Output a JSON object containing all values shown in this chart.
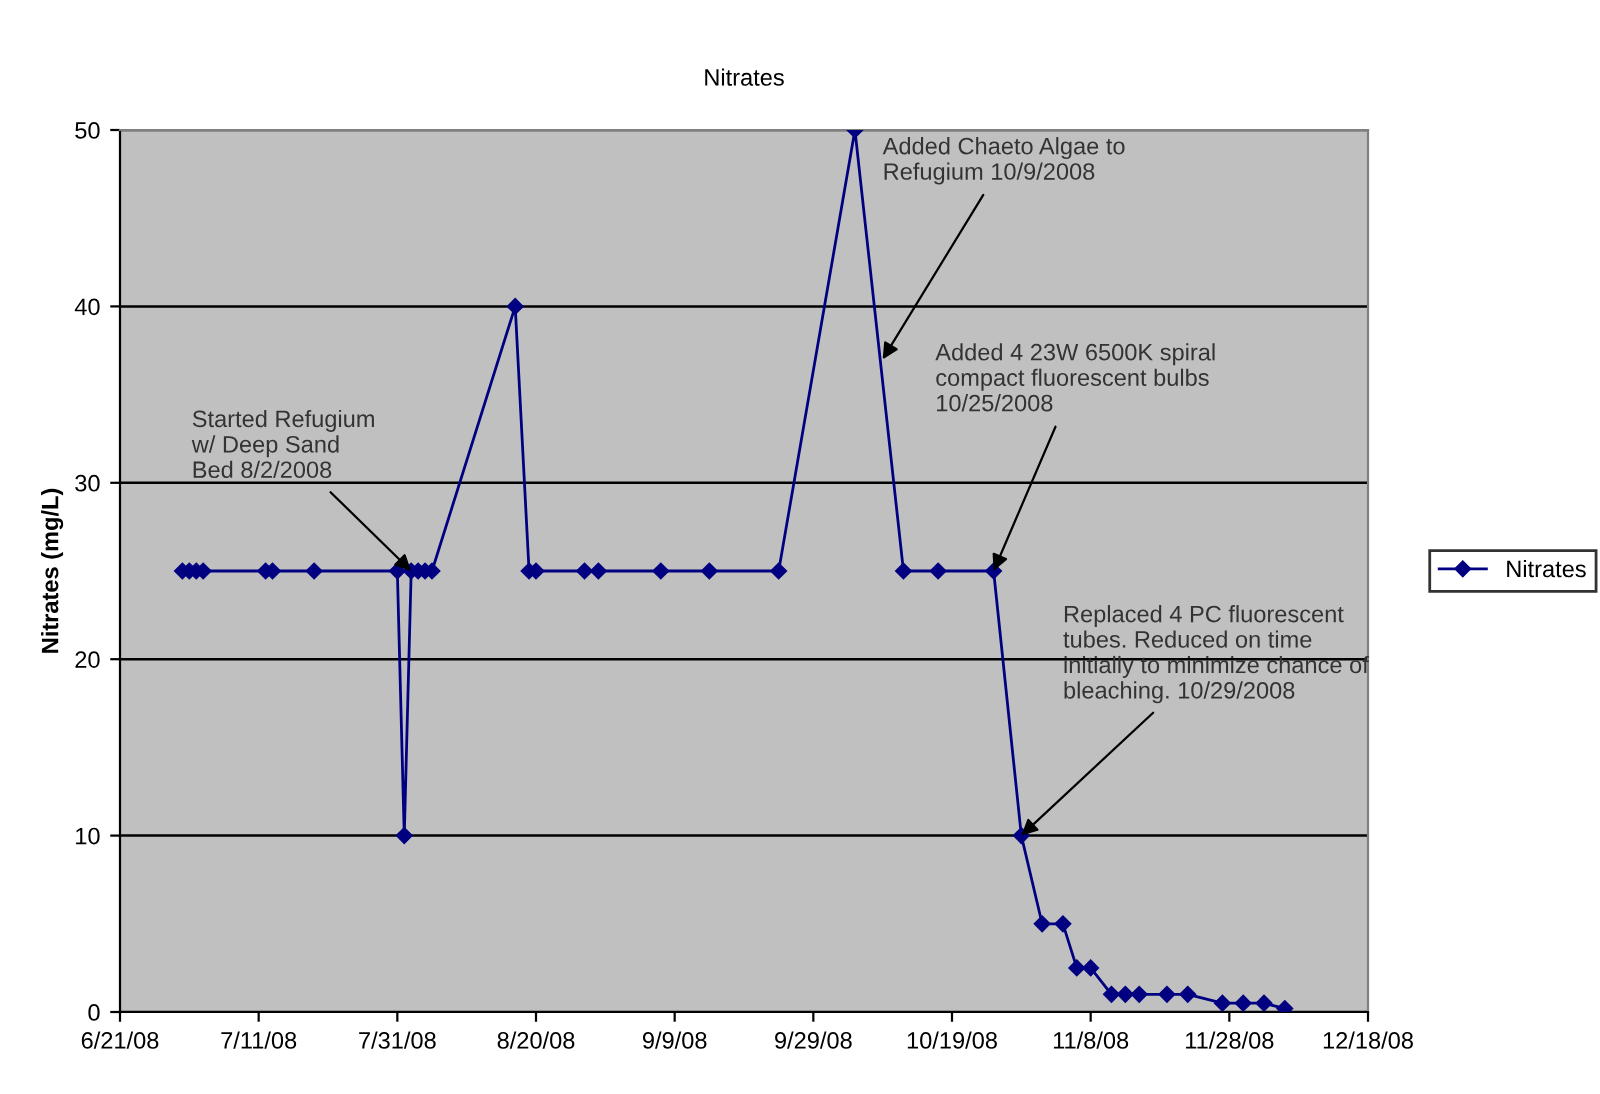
{
  "chart_data": {
    "type": "line",
    "title": "Nitrates",
    "ylabel": "Nitrates (mg/L)",
    "x": [
      "2008-06-30",
      "2008-07-01",
      "2008-07-02",
      "2008-07-03",
      "2008-07-12",
      "2008-07-13",
      "2008-07-19",
      "2008-07-31",
      "2008-08-01",
      "2008-08-02",
      "2008-08-03",
      "2008-08-04",
      "2008-08-05",
      "2008-08-17",
      "2008-08-19",
      "2008-08-20",
      "2008-08-27",
      "2008-08-29",
      "2008-09-07",
      "2008-09-14",
      "2008-09-24",
      "2008-10-05",
      "2008-10-12",
      "2008-10-17",
      "2008-10-25",
      "2008-10-29",
      "2008-11-01",
      "2008-11-04",
      "2008-11-06",
      "2008-11-08",
      "2008-11-11",
      "2008-11-13",
      "2008-11-15",
      "2008-11-19",
      "2008-11-22",
      "2008-11-27",
      "2008-11-30",
      "2008-12-03",
      "2008-12-06"
    ],
    "series": [
      {
        "name": "Nitrates",
        "color": "#000080",
        "values": [
          25,
          25,
          25,
          25,
          25,
          25,
          25,
          25,
          10,
          25,
          25,
          25,
          25,
          40,
          25,
          25,
          25,
          25,
          25,
          25,
          25,
          50,
          25,
          25,
          25,
          10,
          5,
          5,
          2.5,
          2.5,
          1,
          1,
          1,
          1,
          1,
          0.5,
          0.5,
          0.5,
          0.2
        ]
      }
    ],
    "xlim": [
      "2008-06-21",
      "2008-12-18"
    ],
    "xticks": [
      {
        "value": "2008-06-21",
        "label": "6/21/08"
      },
      {
        "value": "2008-07-11",
        "label": "7/11/08"
      },
      {
        "value": "2008-07-31",
        "label": "7/31/08"
      },
      {
        "value": "2008-08-20",
        "label": "8/20/08"
      },
      {
        "value": "2008-09-09",
        "label": "9/9/08"
      },
      {
        "value": "2008-09-29",
        "label": "9/29/08"
      },
      {
        "value": "2008-10-19",
        "label": "10/19/08"
      },
      {
        "value": "2008-11-08",
        "label": "11/8/08"
      },
      {
        "value": "2008-11-28",
        "label": "11/28/08"
      },
      {
        "value": "2008-12-18",
        "label": "12/18/08"
      }
    ],
    "ylim": [
      0,
      50
    ],
    "yticks": [
      0,
      10,
      20,
      30,
      40,
      50
    ],
    "grid": "y",
    "legend": "right",
    "marker": "diamond",
    "line_style": "solid",
    "annotations": [
      {
        "text": "Started Refugium\nw/ Deep Sand\nBed 8/2/2008",
        "x": "2008-08-02",
        "y": 25
      },
      {
        "text": "Added Chaeto Algae to\nRefugium 10/9/2008",
        "x": "2008-10-09",
        "y": 37
      },
      {
        "text": "Added 4 23W 6500K spiral\ncompact fluorescent bulbs\n10/25/2008",
        "x": "2008-10-25",
        "y": 25
      },
      {
        "text": "Replaced 4 PC fluorescent\ntubes. Reduced on time\ninitially to minimize chance of\nbleaching. 10/29/2008",
        "x": "2008-10-29",
        "y": 10
      }
    ]
  }
}
